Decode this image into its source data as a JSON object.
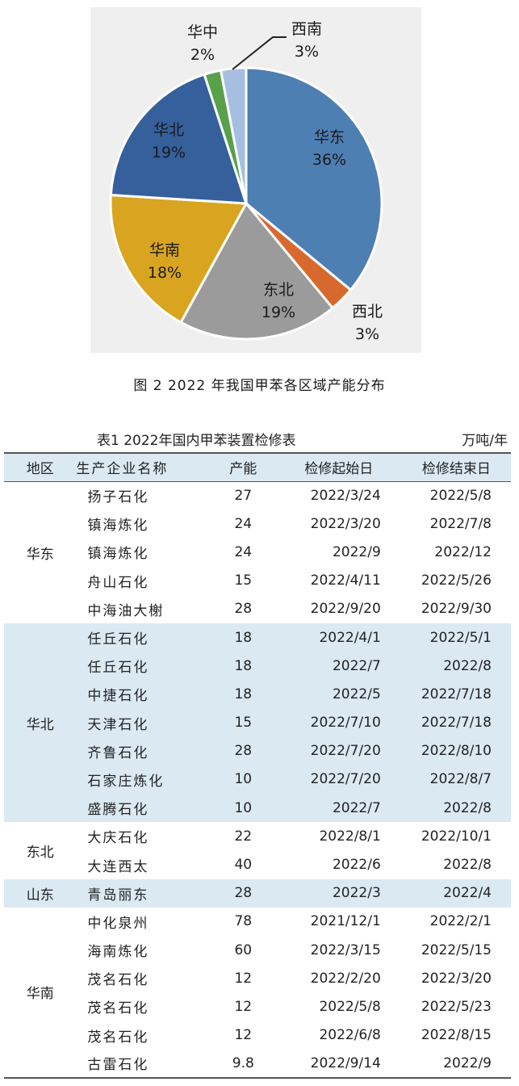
{
  "chart_data": {
    "type": "pie",
    "slices": [
      {
        "label": "华东",
        "pct": "36%",
        "value": 36,
        "color": "#4d7fb3"
      },
      {
        "label": "西北",
        "pct": "3%",
        "value": 3,
        "color": "#d8692e"
      },
      {
        "label": "东北",
        "pct": "19%",
        "value": 19,
        "color": "#9b9b9b"
      },
      {
        "label": "华南",
        "pct": "18%",
        "value": 18,
        "color": "#d9a520"
      },
      {
        "label": "华北",
        "pct": "19%",
        "value": 19,
        "color": "#35609c"
      },
      {
        "label": "华中",
        "pct": "2%",
        "value": 2,
        "color": "#59a04a"
      },
      {
        "label": "西南",
        "pct": "3%",
        "value": 3,
        "color": "#a6bfe0"
      }
    ]
  },
  "figure": {
    "caption": "图 2  2022 年我国甲苯各区域产能分布"
  },
  "table": {
    "title": "表1  2022年国内甲苯装置检修表",
    "unit": "万吨/年",
    "headers": [
      "地区",
      "生产企业名称",
      "产能",
      "检修起始日",
      "检修结束日"
    ],
    "groups": [
      {
        "region": "华东",
        "rows": [
          [
            "扬子石化",
            "27",
            "2022/3/24",
            "2022/5/8"
          ],
          [
            "镇海炼化",
            "24",
            "2022/3/20",
            "2022/7/8"
          ],
          [
            "镇海炼化",
            "24",
            "2022/9",
            "2022/12"
          ],
          [
            "舟山石化",
            "15",
            "2022/4/11",
            "2022/5/26"
          ],
          [
            "中海油大榭",
            "28",
            "2022/9/20",
            "2022/9/30"
          ]
        ]
      },
      {
        "region": "华北",
        "rows": [
          [
            "任丘石化",
            "18",
            "2022/4/1",
            "2022/5/1"
          ],
          [
            "任丘石化",
            "18",
            "2022/7",
            "2022/8"
          ],
          [
            "中捷石化",
            "18",
            "2022/5",
            "2022/7/18"
          ],
          [
            "天津石化",
            "15",
            "2022/7/10",
            "2022/7/18"
          ],
          [
            "齐鲁石化",
            "28",
            "2022/7/20",
            "2022/8/10"
          ],
          [
            "石家庄炼化",
            "10",
            "2022/7/20",
            "2022/8/7"
          ],
          [
            "盛腾石化",
            "10",
            "2022/7",
            "2022/8"
          ]
        ]
      },
      {
        "region": "东北",
        "rows": [
          [
            "大庆石化",
            "22",
            "2022/8/1",
            "2022/10/1"
          ],
          [
            "大连西太",
            "40",
            "2022/6",
            "2022/8"
          ]
        ]
      },
      {
        "region": "山东",
        "rows": [
          [
            "青岛丽东",
            "28",
            "2022/3",
            "2022/4"
          ]
        ]
      },
      {
        "region": "华南",
        "rows": [
          [
            "中化泉州",
            "78",
            "2021/12/1",
            "2022/2/1"
          ],
          [
            "海南炼化",
            "60",
            "2022/3/15",
            "2022/5/15"
          ],
          [
            "茂名石化",
            "12",
            "2022/2/20",
            "2022/3/20"
          ],
          [
            "茂名石化",
            "12",
            "2022/5/8",
            "2022/5/23"
          ],
          [
            "茂名石化",
            "12",
            "2022/6/8",
            "2022/8/15"
          ],
          [
            "古雷石化",
            "9.8",
            "2022/9/14",
            "2022/9"
          ]
        ]
      }
    ]
  }
}
